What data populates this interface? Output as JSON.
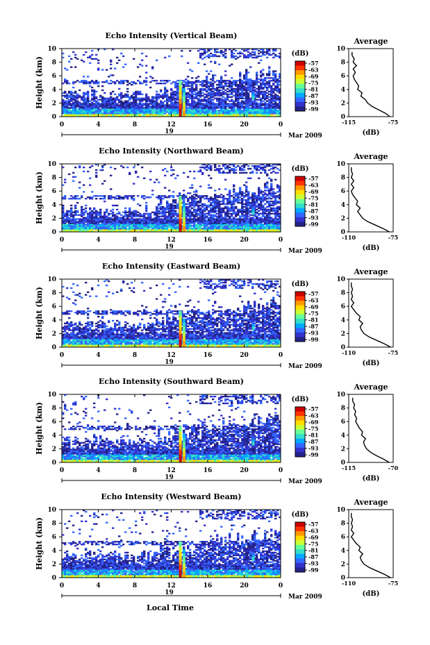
{
  "figure": {
    "xlabel_bottom": "Local Time",
    "date_day": "19",
    "date_month_year": "Mar 2009",
    "colorbar_unit": "(dB)",
    "colorbar_ticks": [
      "-57",
      "-63",
      "-69",
      "-75",
      "-81",
      "-87",
      "-93",
      "-99"
    ],
    "colorbar_colors": [
      "#cc0000",
      "#ff3300",
      "#ff9900",
      "#ffdd00",
      "#ccff33",
      "#66ff99",
      "#33ddcc",
      "#00aaff",
      "#3366ff",
      "#3333cc",
      "#222288"
    ],
    "profile_title": "Average",
    "profile_unit": "(dB)"
  },
  "chart_data": [
    {
      "type": "heatmap",
      "title": "Echo Intensity (Vertical Beam)",
      "ylabel": "Height (km)",
      "xlabel": "Local Time",
      "xticks": [
        "0",
        "4",
        "8",
        "12",
        "16",
        "20",
        "0"
      ],
      "yticks": [
        "0",
        "2",
        "4",
        "6",
        "8",
        "10"
      ],
      "xlim": [
        0,
        24
      ],
      "ylim": [
        0,
        10
      ],
      "clim": [
        -99,
        -57
      ],
      "profile": {
        "title": "Average",
        "xlabel": "(dB)",
        "xticks": [
          "-115",
          "-75"
        ],
        "xlim": [
          -115,
          -75
        ],
        "yticks": [
          "0",
          "2",
          "4",
          "6",
          "8",
          "10"
        ],
        "ylim": [
          0,
          10
        ],
        "height": [
          0,
          0.5,
          1,
          1.5,
          2,
          2.5,
          3,
          3.5,
          4,
          4.5,
          5,
          5.5,
          6,
          6.5,
          7,
          7.5,
          8,
          8.5,
          9,
          9.5
        ],
        "value": [
          -78,
          -82,
          -88,
          -94,
          -98,
          -100,
          -104,
          -103,
          -107,
          -106,
          -108,
          -110,
          -111,
          -109,
          -111,
          -108,
          -111,
          -110,
          -112,
          -112
        ]
      }
    },
    {
      "type": "heatmap",
      "title": "Echo Intensity (Northward Beam)",
      "ylabel": "Height (km)",
      "xlabel": "Local Time",
      "xticks": [
        "0",
        "4",
        "8",
        "12",
        "16",
        "20",
        "0"
      ],
      "yticks": [
        "0",
        "2",
        "4",
        "6",
        "8",
        "10"
      ],
      "xlim": [
        0,
        24
      ],
      "ylim": [
        0,
        10
      ],
      "clim": [
        -99,
        -57
      ],
      "profile": {
        "title": "Average",
        "xlabel": "(dB)",
        "xticks": [
          "-110",
          "-75"
        ],
        "xlim": [
          -110,
          -75
        ],
        "yticks": [
          "0",
          "2",
          "4",
          "6",
          "8",
          "10"
        ],
        "ylim": [
          0,
          10
        ],
        "height": [
          0,
          0.5,
          1,
          1.5,
          2,
          2.5,
          3,
          3.5,
          4,
          4.5,
          5,
          5.5,
          6,
          6.5,
          7,
          7.5,
          8,
          8.5,
          9,
          9.5
        ],
        "value": [
          -78,
          -83,
          -89,
          -95,
          -99,
          -101,
          -103,
          -101,
          -104,
          -103,
          -105,
          -107,
          -108,
          -106,
          -108,
          -106,
          -108,
          -107,
          -108,
          -108
        ]
      }
    },
    {
      "type": "heatmap",
      "title": "Echo Intensity (Eastward Beam)",
      "ylabel": "Height (km)",
      "xlabel": "Local Time",
      "xticks": [
        "0",
        "4",
        "8",
        "12",
        "16",
        "20",
        "0"
      ],
      "yticks": [
        "0",
        "2",
        "4",
        "6",
        "8",
        "10"
      ],
      "xlim": [
        0,
        24
      ],
      "ylim": [
        0,
        10
      ],
      "clim": [
        -99,
        -57
      ],
      "profile": {
        "title": "Average",
        "xlabel": "(dB)",
        "xticks": [
          "-110",
          "-75"
        ],
        "xlim": [
          -110,
          -75
        ],
        "yticks": [
          "0",
          "2",
          "4",
          "6",
          "8",
          "10"
        ],
        "ylim": [
          0,
          10
        ],
        "height": [
          0,
          0.5,
          1,
          1.5,
          2,
          2.5,
          3,
          3.5,
          4,
          4.5,
          5,
          5.5,
          6,
          6.5,
          7,
          7.5,
          8,
          8.5,
          9,
          9.5
        ],
        "value": [
          -77,
          -82,
          -88,
          -94,
          -98,
          -100,
          -101,
          -99,
          -102,
          -101,
          -104,
          -106,
          -108,
          -106,
          -108,
          -107,
          -108,
          -107,
          -108,
          -108
        ]
      }
    },
    {
      "type": "heatmap",
      "title": "Echo Intensity (Southward Beam)",
      "ylabel": "Height (km)",
      "xlabel": "Local Time",
      "xticks": [
        "0",
        "4",
        "8",
        "12",
        "16",
        "20",
        "0"
      ],
      "yticks": [
        "0",
        "2",
        "4",
        "6",
        "8",
        "10"
      ],
      "xlim": [
        0,
        24
      ],
      "ylim": [
        0,
        10
      ],
      "clim": [
        -99,
        -57
      ],
      "profile": {
        "title": "Average",
        "xlabel": "(dB)",
        "xticks": [
          "-115",
          "-70"
        ],
        "xlim": [
          -115,
          -70
        ],
        "yticks": [
          "0",
          "2",
          "4",
          "6",
          "8",
          "10"
        ],
        "ylim": [
          0,
          10
        ],
        "height": [
          0,
          0.5,
          1,
          1.5,
          2,
          2.5,
          3,
          3.5,
          4,
          4.5,
          5,
          5.5,
          6,
          6.5,
          7,
          7.5,
          8,
          8.5,
          9,
          9.5
        ],
        "value": [
          -74,
          -80,
          -87,
          -93,
          -97,
          -99,
          -100,
          -98,
          -102,
          -101,
          -104,
          -106,
          -108,
          -107,
          -109,
          -108,
          -110,
          -109,
          -111,
          -111
        ]
      }
    },
    {
      "type": "heatmap",
      "title": "Echo Intensity (Westward Beam)",
      "ylabel": "Height (km)",
      "xlabel": "Local Time",
      "xticks": [
        "0",
        "4",
        "8",
        "12",
        "16",
        "20",
        "0"
      ],
      "yticks": [
        "0",
        "2",
        "4",
        "6",
        "8",
        "10"
      ],
      "xlim": [
        0,
        24
      ],
      "ylim": [
        0,
        10
      ],
      "clim": [
        -99,
        -57
      ],
      "profile": {
        "title": "Average",
        "xlabel": "(dB)",
        "xticks": [
          "-110",
          "-75"
        ],
        "xlim": [
          -110,
          -75
        ],
        "yticks": [
          "0",
          "2",
          "4",
          "6",
          "8",
          "10"
        ],
        "ylim": [
          0,
          10
        ],
        "height": [
          0,
          0.5,
          1,
          1.5,
          2,
          2.5,
          3,
          3.5,
          4,
          4.5,
          5,
          5.5,
          6,
          6.5,
          7,
          7.5,
          8,
          8.5,
          9,
          9.5
        ],
        "value": [
          -77,
          -82,
          -88,
          -94,
          -98,
          -100,
          -101,
          -99,
          -102,
          -101,
          -104,
          -106,
          -108,
          -106,
          -108,
          -107,
          -108,
          -107,
          -108,
          -108
        ]
      }
    }
  ]
}
